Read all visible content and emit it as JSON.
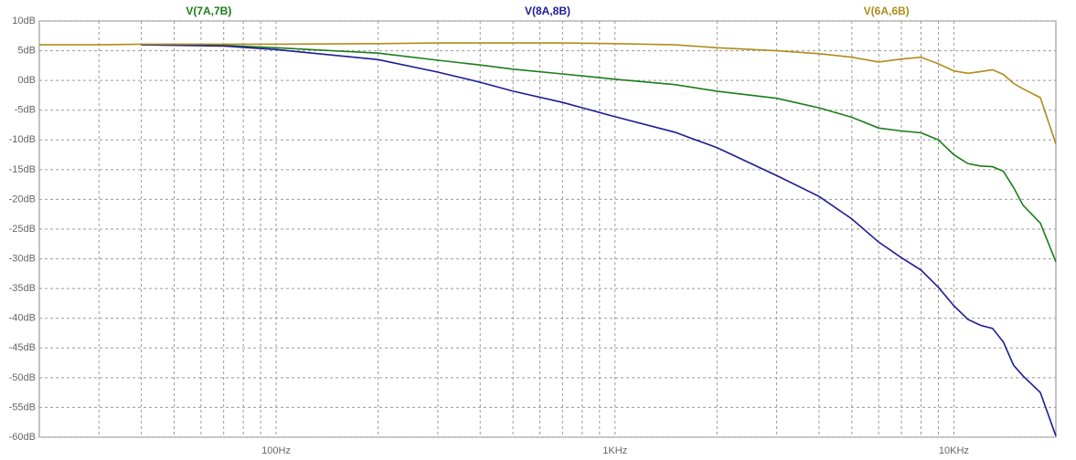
{
  "chart_data": {
    "type": "line",
    "x": [
      20,
      30,
      40,
      70,
      100,
      200,
      300,
      400,
      500,
      700,
      1000,
      1500,
      2000,
      3000,
      4000,
      5000,
      6000,
      7000,
      8000,
      9000,
      10000,
      11000,
      12000,
      13000,
      14000,
      15000,
      16000,
      18000,
      20000
    ],
    "series": [
      {
        "name": "V(7A,7B)",
        "color": "#1b7d1b",
        "values": [
          null,
          null,
          6,
          5.9,
          5.5,
          4.6,
          3.4,
          2.6,
          1.9,
          1.1,
          0.2,
          -0.7,
          -1.8,
          -3.0,
          -4.6,
          -6.2,
          -8.0,
          -8.5,
          -8.8,
          -10,
          -12.5,
          -14,
          -14.4,
          -14.5,
          -15.3,
          -18,
          -21,
          -24,
          -30.5
        ]
      },
      {
        "name": "V(8A,8B)",
        "color": "#1c1c96",
        "values": [
          null,
          null,
          6,
          5.8,
          5.2,
          3.5,
          1.4,
          -0.3,
          -1.8,
          -3.7,
          -6.1,
          -8.7,
          -11.3,
          -16,
          -19.5,
          -23.3,
          -27.2,
          -29.8,
          -31.9,
          -34.8,
          -37.9,
          -40.2,
          -41.2,
          -41.7,
          -44,
          -47.9,
          -49.7,
          -52.5,
          -59.8
        ]
      },
      {
        "name": "V(6A,6B)",
        "color": "#b08c1c",
        "values": [
          6,
          6,
          6.1,
          6.1,
          6.1,
          6.2,
          6.3,
          6.3,
          6.3,
          6.3,
          6.2,
          6.0,
          5.5,
          5.0,
          4.5,
          3.9,
          3.1,
          3.6,
          3.9,
          2.8,
          1.6,
          1.2,
          1.5,
          1.8,
          1.0,
          -0.5,
          -1.4,
          -2.9,
          -10.7
        ]
      }
    ],
    "xlim": [
      20,
      20000
    ],
    "xlog": true,
    "xticks": [
      {
        "value": 100,
        "label": "100Hz"
      },
      {
        "value": 1000,
        "label": "1KHz"
      },
      {
        "value": 10000,
        "label": "10KHz"
      }
    ],
    "xgrid_minor": [
      30,
      40,
      50,
      60,
      70,
      80,
      90,
      200,
      300,
      400,
      500,
      600,
      700,
      800,
      900,
      2000,
      3000,
      4000,
      5000,
      6000,
      7000,
      8000,
      9000
    ],
    "ylim": [
      -60,
      10
    ],
    "yticks": [
      {
        "value": 10,
        "label": "10dB"
      },
      {
        "value": 5,
        "label": "5dB"
      },
      {
        "value": 0,
        "label": "0dB"
      },
      {
        "value": -5,
        "label": "-5dB"
      },
      {
        "value": -10,
        "label": "-10dB"
      },
      {
        "value": -15,
        "label": "-15dB"
      },
      {
        "value": -20,
        "label": "-20dB"
      },
      {
        "value": -25,
        "label": "-25dB"
      },
      {
        "value": -30,
        "label": "-30dB"
      },
      {
        "value": -35,
        "label": "-35dB"
      },
      {
        "value": -40,
        "label": "-40dB"
      },
      {
        "value": -45,
        "label": "-45dB"
      },
      {
        "value": -50,
        "label": "-50dB"
      },
      {
        "value": -55,
        "label": "-55dB"
      },
      {
        "value": -60,
        "label": "-60dB"
      }
    ],
    "grid": true
  }
}
